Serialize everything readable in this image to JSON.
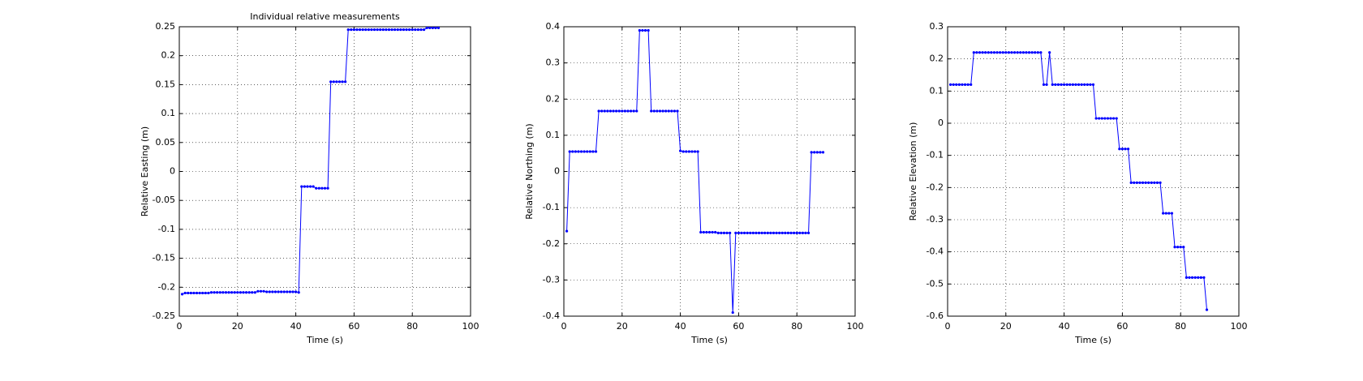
{
  "chart_data": [
    {
      "type": "line",
      "title": "Individual relative measurements",
      "x_label": "Time (s)",
      "y_label": "Relative Easting (m)",
      "x": [
        1,
        2,
        3,
        4,
        5,
        6,
        7,
        8,
        9,
        10,
        11,
        12,
        13,
        14,
        15,
        16,
        17,
        18,
        19,
        20,
        21,
        22,
        23,
        24,
        25,
        26,
        27,
        28,
        29,
        30,
        31,
        32,
        33,
        34,
        35,
        36,
        37,
        38,
        39,
        40,
        41,
        42,
        43,
        44,
        45,
        46,
        47,
        48,
        49,
        50,
        51,
        52,
        53,
        54,
        55,
        56,
        57,
        58,
        59,
        60,
        61,
        62,
        63,
        64,
        65,
        66,
        67,
        68,
        69,
        70,
        71,
        72,
        73,
        74,
        75,
        76,
        77,
        78,
        79,
        80,
        81,
        82,
        83,
        84,
        85,
        86,
        87,
        88,
        89
      ],
      "series": [
        {
          "color": "#0000ff",
          "values": [
            -0.212,
            -0.21,
            -0.21,
            -0.21,
            -0.21,
            -0.21,
            -0.21,
            -0.21,
            -0.21,
            -0.21,
            -0.209,
            -0.209,
            -0.209,
            -0.209,
            -0.209,
            -0.209,
            -0.209,
            -0.209,
            -0.209,
            -0.209,
            -0.209,
            -0.209,
            -0.209,
            -0.209,
            -0.209,
            -0.209,
            -0.207,
            -0.207,
            -0.207,
            -0.208,
            -0.208,
            -0.208,
            -0.208,
            -0.208,
            -0.208,
            -0.208,
            -0.208,
            -0.208,
            -0.208,
            -0.208,
            -0.209,
            -0.026,
            -0.026,
            -0.026,
            -0.026,
            -0.026,
            -0.029,
            -0.029,
            -0.029,
            -0.029,
            -0.029,
            0.155,
            0.155,
            0.155,
            0.155,
            0.155,
            0.155,
            0.245,
            0.245,
            0.245,
            0.245,
            0.245,
            0.245,
            0.245,
            0.245,
            0.245,
            0.245,
            0.245,
            0.245,
            0.245,
            0.245,
            0.245,
            0.245,
            0.245,
            0.245,
            0.245,
            0.245,
            0.245,
            0.245,
            0.245,
            0.245,
            0.245,
            0.245,
            0.245,
            0.248,
            0.248,
            0.248,
            0.248,
            0.248
          ]
        }
      ],
      "xlim": [
        0,
        100
      ],
      "xticks": [
        0,
        20,
        40,
        60,
        80,
        100
      ],
      "ylim": [
        -0.25,
        0.25
      ],
      "yticks": [
        -0.25,
        -0.2,
        -0.15,
        -0.1,
        -0.05,
        0,
        0.05,
        0.1,
        0.15,
        0.2,
        0.25
      ],
      "grid": true
    },
    {
      "type": "line",
      "x_label": "Time (s)",
      "y_label": "Relative Northing (m)",
      "x": [
        1,
        2,
        3,
        4,
        5,
        6,
        7,
        8,
        9,
        10,
        11,
        12,
        13,
        14,
        15,
        16,
        17,
        18,
        19,
        20,
        21,
        22,
        23,
        24,
        25,
        26,
        27,
        28,
        29,
        30,
        31,
        32,
        33,
        34,
        35,
        36,
        37,
        38,
        39,
        40,
        41,
        42,
        43,
        44,
        45,
        46,
        47,
        48,
        49,
        50,
        51,
        52,
        53,
        54,
        55,
        56,
        57,
        58,
        59,
        60,
        61,
        62,
        63,
        64,
        65,
        66,
        67,
        68,
        69,
        70,
        71,
        72,
        73,
        74,
        75,
        76,
        77,
        78,
        79,
        80,
        81,
        82,
        83,
        84,
        85,
        86,
        87,
        88,
        89
      ],
      "series": [
        {
          "color": "#0000ff",
          "values": [
            -0.165,
            0.055,
            0.055,
            0.055,
            0.055,
            0.055,
            0.055,
            0.055,
            0.055,
            0.055,
            0.055,
            0.167,
            0.167,
            0.167,
            0.167,
            0.167,
            0.167,
            0.167,
            0.167,
            0.167,
            0.167,
            0.167,
            0.167,
            0.167,
            0.167,
            0.39,
            0.39,
            0.39,
            0.39,
            0.167,
            0.167,
            0.167,
            0.167,
            0.167,
            0.167,
            0.167,
            0.167,
            0.167,
            0.167,
            0.057,
            0.055,
            0.055,
            0.055,
            0.055,
            0.055,
            0.055,
            -0.168,
            -0.168,
            -0.168,
            -0.168,
            -0.168,
            -0.168,
            -0.17,
            -0.17,
            -0.17,
            -0.17,
            -0.17,
            -0.39,
            -0.17,
            -0.17,
            -0.17,
            -0.17,
            -0.17,
            -0.17,
            -0.17,
            -0.17,
            -0.17,
            -0.17,
            -0.17,
            -0.17,
            -0.17,
            -0.17,
            -0.17,
            -0.17,
            -0.17,
            -0.17,
            -0.17,
            -0.17,
            -0.17,
            -0.17,
            -0.17,
            -0.17,
            -0.17,
            -0.17,
            0.053,
            0.053,
            0.053,
            0.053,
            0.053
          ]
        }
      ],
      "xlim": [
        0,
        100
      ],
      "xticks": [
        0,
        20,
        40,
        60,
        80,
        100
      ],
      "ylim": [
        -0.4,
        0.4
      ],
      "yticks": [
        -0.4,
        -0.3,
        -0.2,
        -0.1,
        0,
        0.1,
        0.2,
        0.3,
        0.4
      ],
      "grid": true
    },
    {
      "type": "line",
      "x_label": "Time (s)",
      "y_label": "Relative Elevation (m)",
      "x": [
        1,
        2,
        3,
        4,
        5,
        6,
        7,
        8,
        9,
        10,
        11,
        12,
        13,
        14,
        15,
        16,
        17,
        18,
        19,
        20,
        21,
        22,
        23,
        24,
        25,
        26,
        27,
        28,
        29,
        30,
        31,
        32,
        33,
        34,
        35,
        36,
        37,
        38,
        39,
        40,
        41,
        42,
        43,
        44,
        45,
        46,
        47,
        48,
        49,
        50,
        51,
        52,
        53,
        54,
        55,
        56,
        57,
        58,
        59,
        60,
        61,
        62,
        63,
        64,
        65,
        66,
        67,
        68,
        69,
        70,
        71,
        72,
        73,
        74,
        75,
        76,
        77,
        78,
        79,
        80,
        81,
        82,
        83,
        84,
        85,
        86,
        87,
        88,
        89
      ],
      "series": [
        {
          "color": "#0000ff",
          "values": [
            0.12,
            0.12,
            0.12,
            0.12,
            0.12,
            0.12,
            0.12,
            0.12,
            0.22,
            0.22,
            0.22,
            0.22,
            0.22,
            0.22,
            0.22,
            0.22,
            0.22,
            0.22,
            0.22,
            0.22,
            0.22,
            0.22,
            0.22,
            0.22,
            0.22,
            0.22,
            0.22,
            0.22,
            0.22,
            0.22,
            0.22,
            0.22,
            0.12,
            0.12,
            0.22,
            0.12,
            0.12,
            0.12,
            0.12,
            0.12,
            0.12,
            0.12,
            0.12,
            0.12,
            0.12,
            0.12,
            0.12,
            0.12,
            0.12,
            0.12,
            0.015,
            0.015,
            0.015,
            0.015,
            0.015,
            0.015,
            0.015,
            0.015,
            -0.08,
            -0.08,
            -0.08,
            -0.08,
            -0.185,
            -0.185,
            -0.185,
            -0.185,
            -0.185,
            -0.185,
            -0.185,
            -0.185,
            -0.185,
            -0.185,
            -0.185,
            -0.28,
            -0.28,
            -0.28,
            -0.28,
            -0.385,
            -0.385,
            -0.385,
            -0.385,
            -0.48,
            -0.48,
            -0.48,
            -0.48,
            -0.48,
            -0.48,
            -0.48,
            -0.58
          ]
        }
      ],
      "xlim": [
        0,
        100
      ],
      "xticks": [
        0,
        20,
        40,
        60,
        80,
        100
      ],
      "ylim": [
        -0.6,
        0.3
      ],
      "yticks": [
        -0.6,
        -0.5,
        -0.4,
        -0.3,
        -0.2,
        -0.1,
        0,
        0.1,
        0.2,
        0.3
      ],
      "grid": true
    }
  ]
}
